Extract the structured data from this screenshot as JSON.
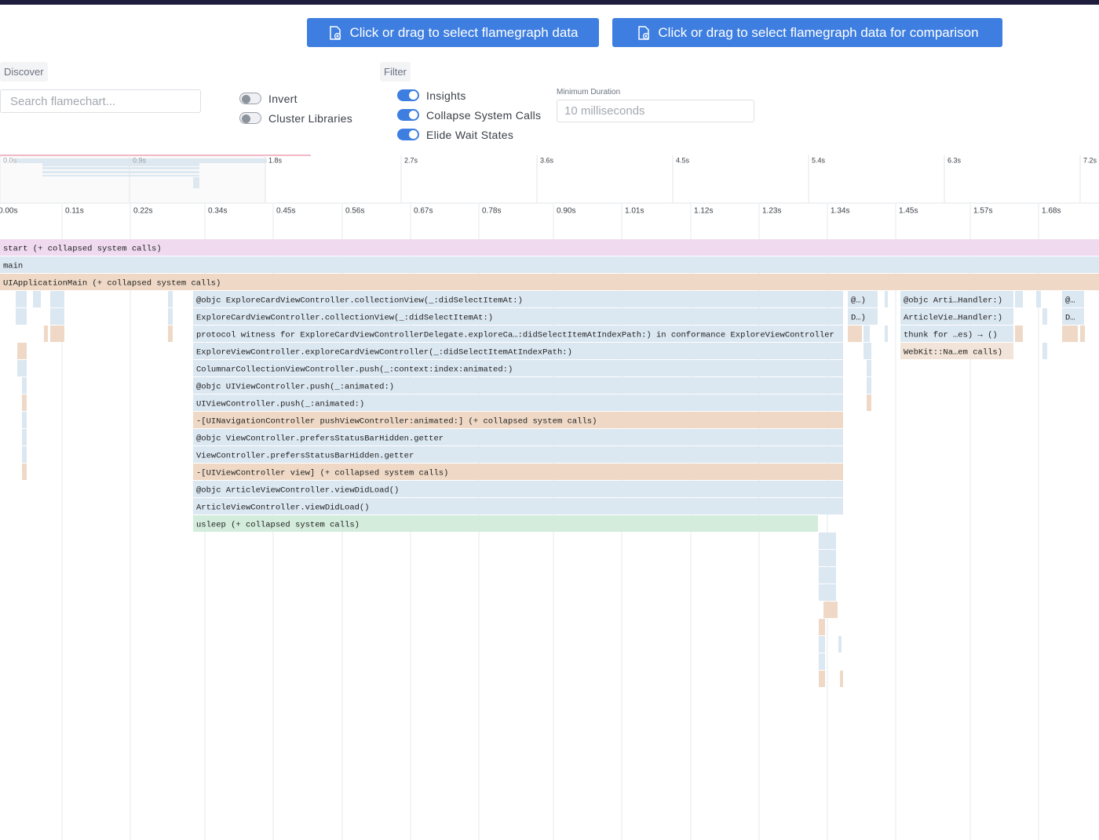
{
  "header": {
    "buttons": [
      "Click or drag to select flamegraph data",
      "Click or drag to select flamegraph data for comparison"
    ]
  },
  "discover": {
    "label": "Discover",
    "search_placeholder": "Search flamechart...",
    "toggles": [
      {
        "label": "Invert",
        "on": false
      },
      {
        "label": "Cluster Libraries",
        "on": false
      }
    ]
  },
  "filter": {
    "label": "Filter",
    "toggles": [
      {
        "label": "Insights",
        "on": true
      },
      {
        "label": "Collapse System Calls",
        "on": true
      },
      {
        "label": "Elide Wait States",
        "on": true
      }
    ],
    "min_duration_label": "Minimum Duration",
    "min_duration_placeholder": "10 milliseconds"
  },
  "minimap": {
    "ticks": [
      "0.0s",
      "0.9s",
      "1.8s",
      "2.7s",
      "3.6s",
      "4.5s",
      "5.4s",
      "6.3s",
      "7.2s"
    ]
  },
  "timeline": {
    "ticks": [
      "0.00s",
      "0.11s",
      "0.22s",
      "0.34s",
      "0.45s",
      "0.56s",
      "0.67s",
      "0.78s",
      "0.90s",
      "1.01s",
      "1.12s",
      "1.23s",
      "1.34s",
      "1.45s",
      "1.57s",
      "1.68s"
    ]
  },
  "frames": [
    {
      "label": "start (+ collapsed system calls)",
      "color": "#efdaf0"
    },
    {
      "label": "main",
      "color": "#dbe7f1"
    },
    {
      "label": "UIApplicationMain (+ collapsed system calls)",
      "color": "#efd9c6"
    },
    {
      "label": "@objc ExploreCardViewController.collectionView(_:didSelectItemAt:)",
      "color": "#dbe7f1"
    },
    {
      "label": "ExploreCardViewController.collectionView(_:didSelectItemAt:)",
      "color": "#dbe7f1"
    },
    {
      "label": "protocol witness for ExploreCardViewControllerDelegate.exploreCa…:didSelectItemAtIndexPath:) in conformance ExploreViewController",
      "color": "#dbe7f1"
    },
    {
      "label": "ExploreViewController.exploreCardViewController(_:didSelectItemAtIndexPath:)",
      "color": "#dbe7f1"
    },
    {
      "label": "ColumnarCollectionViewController.push(_:context:index:animated:)",
      "color": "#dbe7f1"
    },
    {
      "label": "@objc UIViewController.push(_:animated:)",
      "color": "#dbe7f1"
    },
    {
      "label": "UIViewController.push(_:animated:)",
      "color": "#dbe7f1"
    },
    {
      "label": "-[UINavigationController pushViewController:animated:] (+ collapsed system calls)",
      "color": "#efd9c6"
    },
    {
      "label": "@objc ViewController.prefersStatusBarHidden.getter",
      "color": "#dbe7f1"
    },
    {
      "label": "ViewController.prefersStatusBarHidden.getter",
      "color": "#dbe7f1"
    },
    {
      "label": "-[UIViewController view] (+ collapsed system calls)",
      "color": "#efd9c6"
    },
    {
      "label": "@objc ArticleViewController.viewDidLoad()",
      "color": "#dbe7f1"
    },
    {
      "label": "ArticleViewController.viewDidLoad()",
      "color": "#dbe7f1"
    },
    {
      "label": "usleep (+ collapsed system calls)",
      "color": "#d4ecdc"
    },
    {
      "label": "@…)",
      "color": "#dbe7f1"
    },
    {
      "label": "D…)",
      "color": "#dbe7f1"
    },
    {
      "label": "@objc Arti…Handler:)",
      "color": "#dbe7f1"
    },
    {
      "label": "ArticleVie…Handler:)",
      "color": "#dbe7f1"
    },
    {
      "label": "thunk for …es) → ()",
      "color": "#dbe7f1"
    },
    {
      "label": "WebKit::Na…em calls)",
      "color": "#f2e4d8"
    },
    {
      "label": "@…",
      "color": "#dbe7f1"
    },
    {
      "label": "D…",
      "color": "#dbe7f1"
    }
  ]
}
